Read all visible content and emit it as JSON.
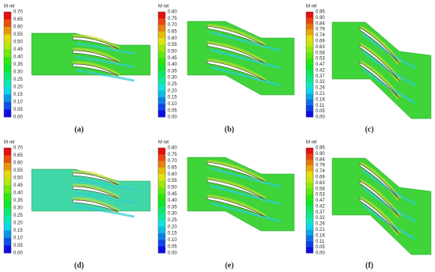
{
  "panels": [
    {
      "colorbar_title": "M rel",
      "ticks": [
        "0.70",
        "0.65",
        "0.60",
        "0.55",
        "0.50",
        "0.45",
        "0.40",
        "0.35",
        "0.30",
        "0.25",
        "0.20",
        "0.15",
        "0.10",
        "0.05",
        "0.00"
      ],
      "label": "(a)"
    },
    {
      "colorbar_title": "M rel",
      "ticks": [
        "0.80",
        "0.75",
        "0.70",
        "0.65",
        "0.60",
        "0.55",
        "0.50",
        "0.45",
        "0.40",
        "0.35",
        "0.30",
        "0.25",
        "0.20",
        "0.15",
        "0.10",
        "0.05",
        "0.00"
      ],
      "label": "(b)"
    },
    {
      "colorbar_title": "M rel",
      "ticks": [
        "0.95",
        "0.90",
        "0.84",
        "0.79",
        "0.74",
        "0.69",
        "0.63",
        "0.58",
        "0.53",
        "0.47",
        "0.42",
        "0.37",
        "0.32",
        "0.26",
        "0.21",
        "0.16",
        "0.11",
        "0.05",
        "0.00"
      ],
      "label": "(c)"
    },
    {
      "colorbar_title": "M rel",
      "ticks": [
        "0.70",
        "0.65",
        "0.60",
        "0.55",
        "0.50",
        "0.45",
        "0.40",
        "0.35",
        "0.30",
        "0.25",
        "0.20",
        "0.15",
        "0.10",
        "0.05",
        "0.00"
      ],
      "label": "(d)"
    },
    {
      "colorbar_title": "M rel",
      "ticks": [
        "0.80",
        "0.75",
        "0.70",
        "0.65",
        "0.60",
        "0.55",
        "0.50",
        "0.45",
        "0.40",
        "0.35",
        "0.30",
        "0.25",
        "0.20",
        "0.15",
        "0.10",
        "0.05",
        "0.00"
      ],
      "label": "(e)"
    },
    {
      "colorbar_title": "M rel",
      "ticks": [
        "0.95",
        "0.90",
        "0.84",
        "0.79",
        "0.74",
        "0.69",
        "0.63",
        "0.58",
        "0.53",
        "0.47",
        "0.42",
        "0.37",
        "0.32",
        "0.26",
        "0.21",
        "0.16",
        "0.11",
        "0.05",
        "0.00"
      ],
      "label": "(f)"
    }
  ]
}
